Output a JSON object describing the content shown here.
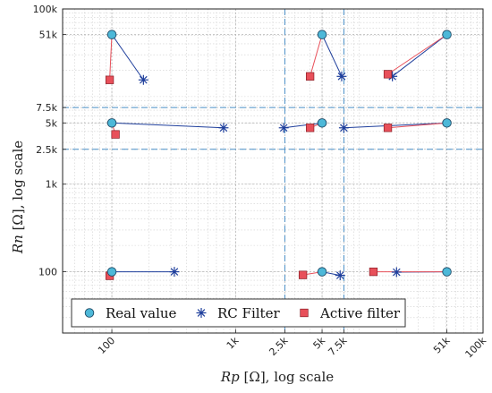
{
  "chart_data": {
    "type": "scatter",
    "xscale": "log",
    "yscale": "log",
    "xlim": [
      40,
      100000
    ],
    "ylim": [
      20,
      100000
    ],
    "xlabel": {
      "var": "Rp",
      "rest": " [Ω], log scale"
    },
    "ylabel": {
      "var": "Rn",
      "rest": " [Ω], log scale"
    },
    "xticks": [
      {
        "v": 100,
        "label": "100"
      },
      {
        "v": 1000,
        "label": "1k"
      },
      {
        "v": 2500,
        "label": "2.5k"
      },
      {
        "v": 5000,
        "label": "5k"
      },
      {
        "v": 7500,
        "label": "7.5k"
      },
      {
        "v": 51000,
        "label": "51k"
      },
      {
        "v": 100000,
        "label": "100k"
      }
    ],
    "yticks": [
      {
        "v": 100,
        "label": "100"
      },
      {
        "v": 1000,
        "label": "1k"
      },
      {
        "v": 2500,
        "label": "2.5k"
      },
      {
        "v": 5000,
        "label": "5k"
      },
      {
        "v": 7500,
        "label": "7.5k"
      },
      {
        "v": 51000,
        "label": "51k"
      },
      {
        "v": 100000,
        "label": "100k"
      }
    ],
    "grid": true,
    "legend_position": "bottom-left",
    "colors": {
      "real": "#4db8d8",
      "rc": "#1f3f9c",
      "active": "#e8505a",
      "threshold": "#4a90c8"
    },
    "thresholds": {
      "x": [
        2500,
        7500
      ],
      "y": [
        2500,
        7500
      ]
    },
    "series": [
      {
        "name": "Real value",
        "marker": "circle",
        "points": [
          [
            100,
            51000
          ],
          [
            5000,
            51000
          ],
          [
            51000,
            51000
          ],
          [
            100,
            5000
          ],
          [
            5000,
            5000
          ],
          [
            51000,
            5000
          ],
          [
            100,
            100
          ],
          [
            5000,
            100
          ],
          [
            51000,
            100
          ]
        ]
      },
      {
        "name": "RC Filter",
        "marker": "asterisk",
        "points": [
          [
            180,
            15500
          ],
          [
            7200,
            17000
          ],
          [
            18500,
            17000
          ],
          [
            800,
            4400
          ],
          [
            2450,
            4400
          ],
          [
            7500,
            4400
          ],
          [
            320,
            100
          ],
          [
            7000,
            91
          ],
          [
            20000,
            99
          ]
        ]
      },
      {
        "name": "Active filter",
        "marker": "square",
        "points": [
          [
            96,
            15500
          ],
          [
            4000,
            17000
          ],
          [
            17000,
            18000
          ],
          [
            107,
            3700
          ],
          [
            4000,
            4400
          ],
          [
            17000,
            4400
          ],
          [
            96,
            90
          ],
          [
            3500,
            92
          ],
          [
            13000,
            100
          ]
        ]
      }
    ]
  }
}
